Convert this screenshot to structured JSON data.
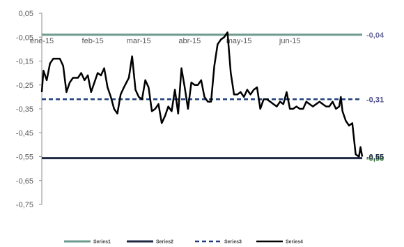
{
  "chart_data": {
    "type": "line",
    "title": "",
    "xlabel": "",
    "ylabel": "",
    "ylim": [
      -0.75,
      0.05
    ],
    "y_ticks": [
      0.05,
      -0.05,
      -0.15,
      -0.25,
      -0.35,
      -0.45,
      -0.55,
      -0.65,
      -0.75
    ],
    "y_tick_labels": [
      "0,05",
      "-0,05",
      "-0,15",
      "-0,25",
      "-0,35",
      "-0,45",
      "-0,55",
      "-0,65",
      "-0,75"
    ],
    "x_tick_labels": [
      "ene-15",
      "feb-15",
      "mar-15",
      "abr-15",
      "may-15",
      "jun-15"
    ],
    "x_range": [
      "2015-01-01",
      "2015-07-15"
    ],
    "grid": false,
    "legend_position": "bottom",
    "series": [
      {
        "name": "Series1",
        "color": "#6e9a8e",
        "style": "solid",
        "width": 3,
        "points": [
          [
            "2015-01-01",
            -0.04
          ],
          [
            "2015-07-15",
            -0.04
          ]
        ],
        "end_label": "-0,04"
      },
      {
        "name": "Series2",
        "color": "#1f2a44",
        "style": "solid",
        "width": 3,
        "points": [
          [
            "2015-01-01",
            -0.556
          ],
          [
            "2015-07-15",
            -0.556
          ]
        ],
        "end_label": "-0,56"
      },
      {
        "name": "Series3",
        "color": "#1f3f7a",
        "style": "dashed",
        "width": 2.5,
        "points": [
          [
            "2015-01-01",
            -0.31
          ],
          [
            "2015-07-15",
            -0.31
          ]
        ],
        "end_label": "-0,31"
      },
      {
        "name": "Series4",
        "color": "#000000",
        "style": "solid",
        "width": 2.5,
        "end_label": "-0,55",
        "points": [
          [
            "2015-01-01",
            -0.28
          ],
          [
            "2015-01-02",
            -0.19
          ],
          [
            "2015-01-04",
            -0.23
          ],
          [
            "2015-01-06",
            -0.16
          ],
          [
            "2015-01-08",
            -0.14
          ],
          [
            "2015-01-12",
            -0.14
          ],
          [
            "2015-01-14",
            -0.17
          ],
          [
            "2015-01-16",
            -0.28
          ],
          [
            "2015-01-18",
            -0.24
          ],
          [
            "2015-01-20",
            -0.22
          ],
          [
            "2015-01-23",
            -0.22
          ],
          [
            "2015-01-25",
            -0.2
          ],
          [
            "2015-01-27",
            -0.23
          ],
          [
            "2015-01-29",
            -0.21
          ],
          [
            "2015-01-31",
            -0.28
          ],
          [
            "2015-02-02",
            -0.24
          ],
          [
            "2015-02-04",
            -0.2
          ],
          [
            "2015-02-06",
            -0.21
          ],
          [
            "2015-02-08",
            -0.18
          ],
          [
            "2015-02-10",
            -0.26
          ],
          [
            "2015-02-12",
            -0.3
          ],
          [
            "2015-02-14",
            -0.35
          ],
          [
            "2015-02-16",
            -0.37
          ],
          [
            "2015-02-18",
            -0.29
          ],
          [
            "2015-02-20",
            -0.26
          ],
          [
            "2015-02-23",
            -0.22
          ],
          [
            "2015-02-25",
            -0.13
          ],
          [
            "2015-02-27",
            -0.27
          ],
          [
            "2015-03-01",
            -0.3
          ],
          [
            "2015-03-03",
            -0.31
          ],
          [
            "2015-03-05",
            -0.23
          ],
          [
            "2015-03-07",
            -0.26
          ],
          [
            "2015-03-09",
            -0.36
          ],
          [
            "2015-03-11",
            -0.35
          ],
          [
            "2015-03-13",
            -0.33
          ],
          [
            "2015-03-15",
            -0.41
          ],
          [
            "2015-03-17",
            -0.38
          ],
          [
            "2015-03-19",
            -0.34
          ],
          [
            "2015-03-21",
            -0.36
          ],
          [
            "2015-03-23",
            -0.27
          ],
          [
            "2015-03-25",
            -0.37
          ],
          [
            "2015-03-27",
            -0.18
          ],
          [
            "2015-03-29",
            -0.26
          ],
          [
            "2015-03-31",
            -0.35
          ],
          [
            "2015-04-02",
            -0.24
          ],
          [
            "2015-04-04",
            -0.25
          ],
          [
            "2015-04-06",
            -0.25
          ],
          [
            "2015-04-08",
            -0.23
          ],
          [
            "2015-04-10",
            -0.3
          ],
          [
            "2015-04-12",
            -0.32
          ],
          [
            "2015-04-14",
            -0.32
          ],
          [
            "2015-04-16",
            -0.17
          ],
          [
            "2015-04-18",
            -0.08
          ],
          [
            "2015-04-20",
            -0.06
          ],
          [
            "2015-04-22",
            -0.05
          ],
          [
            "2015-04-24",
            -0.03
          ],
          [
            "2015-04-26",
            -0.2
          ],
          [
            "2015-04-28",
            -0.29
          ],
          [
            "2015-04-30",
            -0.29
          ],
          [
            "2015-05-02",
            -0.28
          ],
          [
            "2015-05-04",
            -0.3
          ],
          [
            "2015-05-06",
            -0.27
          ],
          [
            "2015-05-08",
            -0.29
          ],
          [
            "2015-05-10",
            -0.27
          ],
          [
            "2015-05-12",
            -0.26
          ],
          [
            "2015-05-14",
            -0.35
          ],
          [
            "2015-05-16",
            -0.31
          ],
          [
            "2015-05-18",
            -0.31
          ],
          [
            "2015-05-20",
            -0.32
          ],
          [
            "2015-05-22",
            -0.33
          ],
          [
            "2015-05-24",
            -0.34
          ],
          [
            "2015-05-26",
            -0.32
          ],
          [
            "2015-05-28",
            -0.33
          ],
          [
            "2015-05-30",
            -0.28
          ],
          [
            "2015-06-01",
            -0.35
          ],
          [
            "2015-06-03",
            -0.35
          ],
          [
            "2015-06-05",
            -0.34
          ],
          [
            "2015-06-07",
            -0.35
          ],
          [
            "2015-06-09",
            -0.35
          ],
          [
            "2015-06-11",
            -0.32
          ],
          [
            "2015-06-13",
            -0.33
          ],
          [
            "2015-06-15",
            -0.34
          ],
          [
            "2015-06-17",
            -0.33
          ],
          [
            "2015-06-19",
            -0.32
          ],
          [
            "2015-06-21",
            -0.33
          ],
          [
            "2015-06-23",
            -0.34
          ],
          [
            "2015-06-25",
            -0.34
          ],
          [
            "2015-06-27",
            -0.32
          ],
          [
            "2015-06-29",
            -0.35
          ],
          [
            "2015-07-01",
            -0.34
          ],
          [
            "2015-07-02",
            -0.3
          ],
          [
            "2015-07-03",
            -0.36
          ],
          [
            "2015-07-05",
            -0.4
          ],
          [
            "2015-07-07",
            -0.42
          ],
          [
            "2015-07-09",
            -0.41
          ],
          [
            "2015-07-11",
            -0.54
          ],
          [
            "2015-07-13",
            -0.55
          ],
          [
            "2015-07-14",
            -0.51
          ],
          [
            "2015-07-15",
            -0.55
          ]
        ]
      }
    ],
    "legend": [
      "Series1",
      "Series2",
      "Series3",
      "Series4"
    ]
  }
}
